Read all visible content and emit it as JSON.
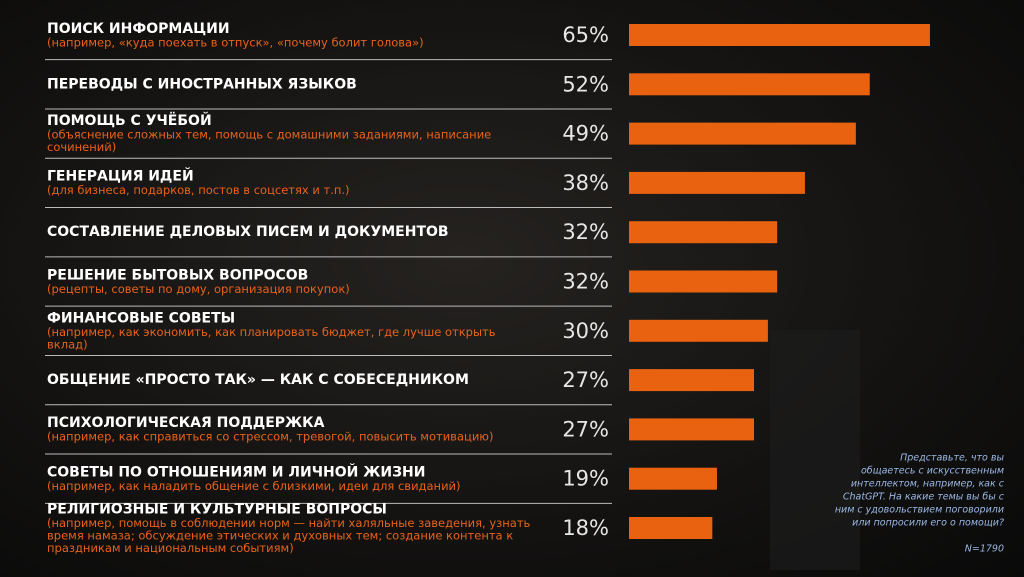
{
  "chart_data": {
    "type": "bar",
    "categories": [
      "ПОИСК ИНФОРМАЦИИ",
      "ПЕРЕВОДЫ С ИНОСТРАННЫХ ЯЗЫКОВ",
      "ПОМОЩЬ С УЧЁБОЙ",
      "ГЕНЕРАЦИЯ ИДЕЙ",
      "СОСТАВЛЕНИЕ ДЕЛОВЫХ ПИСЕМ И ДОКУМЕНТОВ",
      "РЕШЕНИЕ БЫТОВЫХ ВОПРОСОВ",
      "ФИНАНСОВЫЕ СОВЕТЫ",
      "ОБЩЕНИЕ «ПРОСТО ТАК» — КАК С СОБЕСЕДНИКОМ",
      "ПСИХОЛОГИЧЕСКАЯ ПОДДЕРЖКА",
      "СОВЕТЫ ПО ОТНОШЕНИЯМ И ЛИЧНОЙ ЖИЗНИ",
      "РЕЛИГИОЗНЫЕ И КУЛЬТУРНЫЕ ВОПРОСЫ"
    ],
    "subtitles": [
      [
        "(например, «куда поехать в отпуск», «почему болит голова»)"
      ],
      null,
      [
        "(объяснение сложных тем, помощь с домашними заданиями, написание",
        "сочинений)"
      ],
      [
        "(для бизнеса, подарков, постов в соцсетях и т.п.)"
      ],
      null,
      [
        "(рецепты, советы по дому, организация покупок)"
      ],
      [
        "(например, как экономить, как планировать бюджет, где лучше открыть",
        "вклад)"
      ],
      null,
      [
        "(например, как справиться со стрессом, тревогой, повысить мотивацию)"
      ],
      [
        "(например, как наладить общение с близкими, идеи для свиданий)"
      ],
      [
        "(например, помощь в соблюдении норм — найти халяльные заведения, узнать",
        "время намаза; обсуждение этических и духовных тем; создание контента к",
        "праздникам и национальным событиям)"
      ]
    ],
    "values": [
      65,
      52,
      49,
      38,
      32,
      32,
      30,
      27,
      27,
      19,
      18
    ],
    "value_labels": [
      "65%",
      "52%",
      "49%",
      "38%",
      "32%",
      "32%",
      "30%",
      "27%",
      "27%",
      "19%",
      "18%"
    ],
    "color": "#e8620f",
    "question_lines": [
      "Представьте, что вы",
      "общаетесь с искусственным",
      "интеллектом, например, как с",
      "ChatGPT. На какие темы вы бы с",
      "ним с удовольствием поговорили",
      "или попросили его о помощи?"
    ],
    "sample": "N=1790"
  }
}
